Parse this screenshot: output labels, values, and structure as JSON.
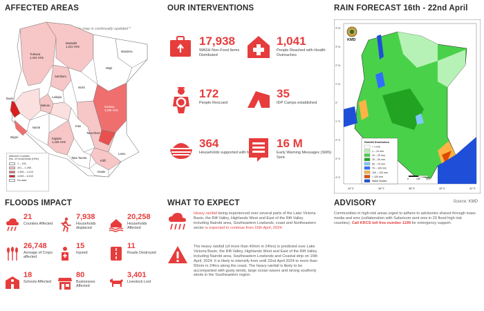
{
  "affected": {
    "title": "AFFECTED AREAS",
    "note": "This map is continually updated *",
    "legend_title_1": "Affected Counties",
    "legend_title_2": "(No. of households (HHs)",
    "legend": [
      {
        "label": "1 – 153",
        "color": "#ffffff"
      },
      {
        "label": "201 – 1,095",
        "color": "#f7c6c6"
      },
      {
        "label": "1,396 – 4,213",
        "color": "#ef6f6f"
      },
      {
        "label": "4,635 – 6,310",
        "color": "#d81e1e"
      },
      {
        "label": "No data",
        "color": "#ffffff"
      }
    ],
    "counties": {
      "turkana": "Turkana",
      "turkana_v": "1,424 HHs",
      "marsabit": "Marsabit",
      "marsabit_v": "1,221 HHs",
      "mandera": "Mandera",
      "wajir": "Wajir",
      "samburu": "Samburu",
      "isiolo": "Isiolo",
      "garissa": "Garissa",
      "garissa_v": "4,635 HHs",
      "tana_river": "Tana River",
      "kitui": "Kitui",
      "kajiado": "Kajiado",
      "kajiado_v": "1,425 HHs",
      "lamu": "Lamu",
      "taita": "Taita Taveta",
      "kwale": "Kwale",
      "kilifi": "Kilifi",
      "nakuru": "Nakuru",
      "laikipia": "Laikipia",
      "narok": "Narok",
      "migori": "Migori",
      "busia": "Busia"
    }
  },
  "interventions": {
    "title": "OUR INTERVENTIONS",
    "items": [
      {
        "value": "17,938",
        "label": "WASH Non-Food Items Distributed",
        "icon": "wash-kit-icon"
      },
      {
        "value": "1,041",
        "label": "People Reached with Health Outreaches",
        "icon": "health-cross-icon"
      },
      {
        "value": "172",
        "label": "People Rescued",
        "icon": "rescuer-icon"
      },
      {
        "value": "35",
        "label": "IDP Camps established",
        "icon": "tent-icon"
      },
      {
        "value": "364",
        "label": "Households supported with food",
        "icon": "food-bowl-icon"
      },
      {
        "value": "16 M",
        "label": "Early Warning Messages (SMS) Sent.",
        "icon": "message-icon"
      }
    ]
  },
  "rain": {
    "title": "RAIN FORECAST 16th - 22nd April",
    "agency": "KMD",
    "source": "Source: KMD",
    "legend_title": "Rainfall Distribution",
    "legend": [
      {
        "label": "< 1 mm",
        "color": "#ffffff"
      },
      {
        "label": "1 – 10 mm",
        "color": "#b6f2b6"
      },
      {
        "label": "10 – 20 mm",
        "color": "#4ad14a"
      },
      {
        "label": "20 – 50 mm",
        "color": "#22a322"
      },
      {
        "label": "50 – 70 mm",
        "color": "#7ec8ff"
      },
      {
        "label": "70 – 100 mm",
        "color": "#2f6fff"
      },
      {
        "label": "100 – 120 mm",
        "color": "#ffb347"
      },
      {
        "label": "> 120 mm",
        "color": "#e04a00"
      },
      {
        "label": "Water Bodies",
        "color": "#1f4fd8"
      }
    ],
    "lat_ticks": [
      "4° N",
      "3° N",
      "2° N",
      "1° N",
      "0°",
      "1° S",
      "2° S",
      "3° S",
      "4° S"
    ],
    "lon_ticks": [
      "34° E",
      "36° E",
      "38° E",
      "40° E",
      "42° E"
    ],
    "scale": [
      "0",
      "160",
      "320"
    ]
  },
  "floods": {
    "title": "FLOODS IMPACT",
    "items": [
      {
        "value": "21",
        "label": "Counties Affected",
        "icon": "rain-cloud-icon"
      },
      {
        "value": "7,938",
        "label": "Households displaced",
        "icon": "running-person-icon"
      },
      {
        "value": "20,258",
        "label": "Households Affected",
        "icon": "flooded-house-icon"
      },
      {
        "value": "26,748",
        "label": "Acreage of Crops affected",
        "icon": "crops-icon"
      },
      {
        "value": "15",
        "label": "Injured",
        "icon": "injured-icon"
      },
      {
        "value": "11",
        "label": "Roads Destroyed",
        "icon": "road-icon"
      },
      {
        "value": "18",
        "label": "Schools Affected",
        "icon": "school-icon"
      },
      {
        "value": "80",
        "label": "Businesses Affected",
        "icon": "business-icon"
      },
      {
        "value": "3,401",
        "label": "Livestock Lost",
        "icon": "livestock-icon"
      }
    ]
  },
  "expect": {
    "title": "WHAT TO EXPECT",
    "p1_a": "Heavy rainfall",
    "p1_b": " being experienced over several parts of the Lake Victoria Basin, the Rift Valley, Highlands West and East of the Rift Valley including Nairobi area, Southeastern Lowlands, coast and Northeastern sector ",
    "p1_c": "is expected to continue from 15th April, 2024.",
    "p2": "The heavy rainfall (of more than 40mm in 24hrs) is predicted over Lake Victoria Basin, the Rift Valley, Highlands West and East of the Rift Valley including Nairobi area, Southeastern Lowlands and Coastal strip on 15th April, 2024. It is likely to intensify from until 22nd April 2024 to more than 50mm in 24hrs along the coast. The heavy rainfall is likely to be accompanied with gusty winds, large ocean waves and strong southerly winds in the Southeastern region."
  },
  "advisory": {
    "title": "ADVISORY",
    "text_a": "Communities in high-risk areas urged to adhere to advisories shared through mass media and sms (collaboration with Safaricom sent sms in 23 flood high risk counties). ",
    "text_b": "Call KRCS toll free number 1199",
    "text_c": " for emergency support."
  }
}
